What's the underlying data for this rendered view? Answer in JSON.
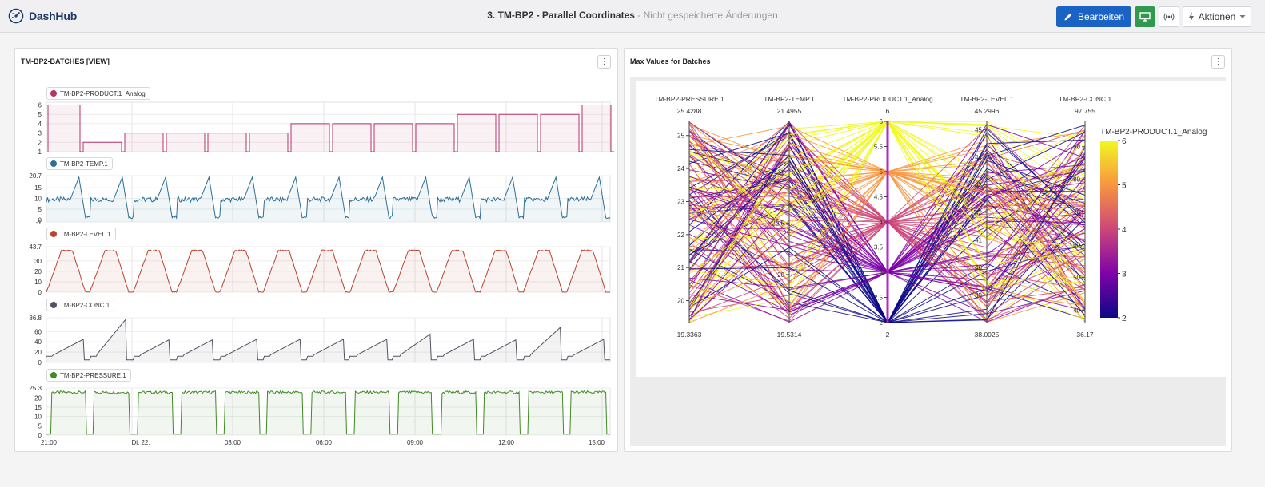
{
  "app": {
    "logo_text": "DashHub"
  },
  "header": {
    "title": "3. TM-BP2 - Parallel Coordinates",
    "separator": " - ",
    "subtitle": "Nicht gespeicherte Änderungen",
    "edit_label": "Bearbeiten",
    "actions_label": "Aktionen"
  },
  "left_panel": {
    "title": "TM-BP2-BATCHES [VIEW]",
    "x_ticks": [
      "21:00",
      "Di. 22.",
      "03:00",
      "06:00",
      "09:00",
      "12:00",
      "15:00"
    ],
    "charts": [
      {
        "name": "TM-BP2-PRODUCT.1_Analog",
        "color": "#b5336b",
        "y_ticks": [
          "6",
          "5",
          "4",
          "3",
          "2",
          "1"
        ]
      },
      {
        "name": "TM-BP2-TEMP.1",
        "color": "#2d6f95",
        "y_ticks": [
          "20.7",
          "15",
          "10",
          "5",
          "0",
          "-1"
        ]
      },
      {
        "name": "TM-BP2-LEVEL.1",
        "color": "#b8432f",
        "y_ticks": [
          "43.7",
          "30",
          "20",
          "10",
          "0"
        ]
      },
      {
        "name": "TM-BP2-CONC.1",
        "color": "#4f5364",
        "y_ticks": [
          "86.8",
          "60",
          "40",
          "20",
          "0"
        ]
      },
      {
        "name": "TM-BP2-PRESSURE.1",
        "color": "#3f8a24",
        "y_ticks": [
          "25.3",
          "20",
          "15",
          "10",
          "5",
          "0"
        ]
      }
    ]
  },
  "right_panel": {
    "title": "Max Values for Batches",
    "axes": [
      {
        "label": "TM-BP2-PRESSURE.1",
        "max": "25.4288",
        "min": "19.3363",
        "ticks": [
          "25",
          "24",
          "23",
          "22",
          "21",
          "20"
        ]
      },
      {
        "label": "TM-BP2-TEMP.1",
        "max": "21.4955",
        "min": "19.5314",
        "ticks": [
          "21",
          "20.5",
          "20"
        ]
      },
      {
        "label": "TM-BP2-PRODUCT.1_Analog",
        "max": "6",
        "min": "2",
        "ticks": [
          "6",
          "5.5",
          "5",
          "4.5",
          "4",
          "3.5",
          "3",
          "2.5",
          "2"
        ]
      },
      {
        "label": "TM-BP2-LEVEL.1",
        "max": "45.2996",
        "min": "38.0025",
        "ticks": [
          "45",
          "44",
          "43",
          "42",
          "41",
          "40",
          "39"
        ]
      },
      {
        "label": "TM-BP2-CONC.1",
        "max": "97.755",
        "min": "36.17",
        "ticks": [
          "90",
          "80",
          "70",
          "60",
          "50",
          "40"
        ]
      }
    ],
    "colorbar": {
      "title": "TM-BP2-PRODUCT.1_Analog",
      "ticks": [
        "6",
        "5",
        "4",
        "3",
        "2"
      ]
    }
  },
  "colors": {
    "primary": "#1a63c4",
    "success": "#2f9a4d"
  }
}
